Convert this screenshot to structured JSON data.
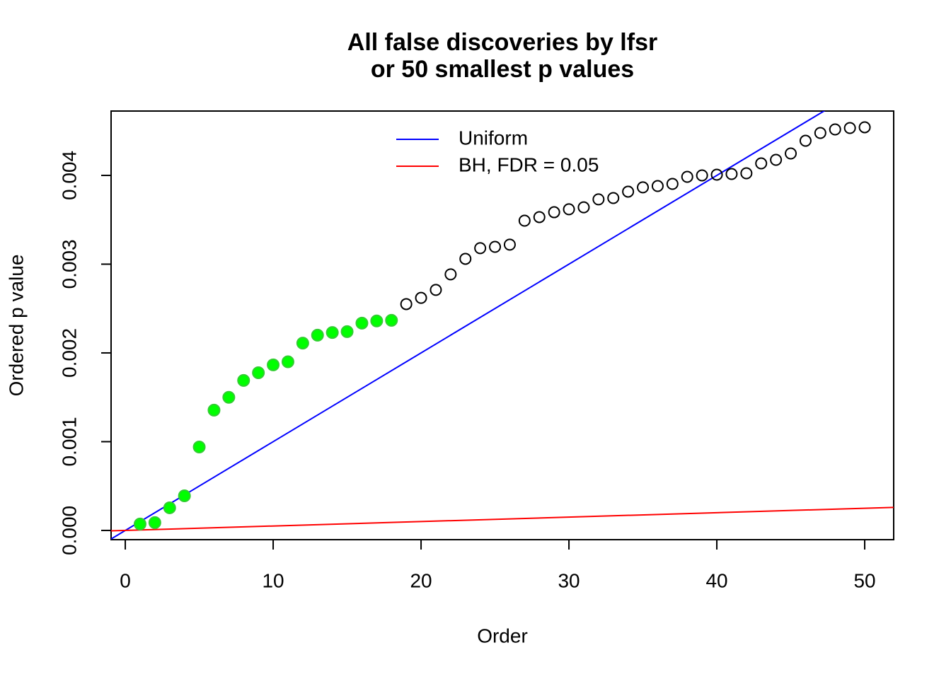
{
  "chart_data": {
    "type": "scatter",
    "title": [
      "All false discoveries by lfsr",
      "or 50 smallest p values"
    ],
    "x_label": "Order",
    "y_label": "Ordered p value",
    "xlim": [
      -0.96,
      51.96
    ],
    "ylim": [
      -0.000104,
      0.004725
    ],
    "xticks": [
      0,
      10,
      20,
      30,
      40,
      50
    ],
    "yticks": [
      {
        "value": 0,
        "label": "0.000"
      },
      {
        "value": 0.001,
        "label": "0.001"
      },
      {
        "value": 0.002,
        "label": "0.002"
      },
      {
        "value": 0.003,
        "label": "0.003"
      },
      {
        "value": 0.004,
        "label": "0.004"
      }
    ],
    "grid": false,
    "legend_position": "top",
    "series": [
      {
        "color": "#00ff00",
        "filled": true,
        "x": [
          1,
          2,
          3,
          4,
          5,
          6,
          7,
          8,
          9,
          10,
          11,
          12,
          13,
          14,
          15,
          16,
          17,
          18
        ],
        "values": [
          7.2e-05,
          8.8e-05,
          0.000255,
          0.00039,
          0.00094,
          0.001355,
          0.0015,
          0.00169,
          0.001777,
          0.001865,
          0.0019,
          0.00211,
          0.0022,
          0.00223,
          0.00224,
          0.002335,
          0.00236,
          0.002367
        ]
      },
      {
        "color": "#000000",
        "filled": false,
        "x": [
          19,
          20,
          21,
          22,
          23,
          24,
          25,
          26,
          27,
          28,
          29,
          30,
          31,
          32,
          33,
          34,
          35,
          36,
          37,
          38,
          39,
          40,
          41,
          42,
          43,
          44,
          45,
          46,
          47,
          48,
          49,
          50
        ],
        "values": [
          0.00255,
          0.00262,
          0.00271,
          0.002885,
          0.00306,
          0.00318,
          0.003195,
          0.00322,
          0.00349,
          0.00353,
          0.003585,
          0.003618,
          0.00364,
          0.00373,
          0.003745,
          0.003817,
          0.003865,
          0.00388,
          0.003904,
          0.003984,
          0.004,
          0.004008,
          0.004016,
          0.004024,
          0.004135,
          0.004175,
          0.004247,
          0.00439,
          0.004478,
          0.004518,
          0.004534,
          0.004542
        ]
      }
    ],
    "lines": [
      {
        "name": "Uniform",
        "color": "#0000ff",
        "x": [
          0,
          50
        ],
        "values": [
          0,
          0.005
        ]
      },
      {
        "name": "BH, FDR = 0.05",
        "color": "#ff0000",
        "x": [
          0,
          50
        ],
        "values": [
          0,
          0.00025
        ]
      }
    ]
  }
}
